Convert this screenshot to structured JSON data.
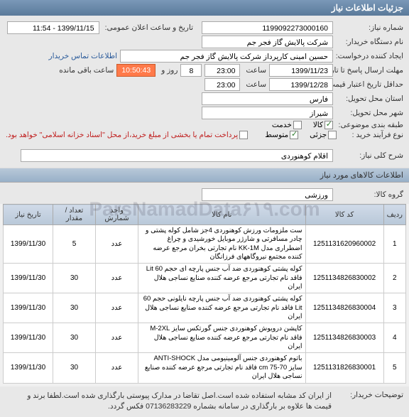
{
  "header": {
    "title": "جزئیات اطلاعات نیاز"
  },
  "form": {
    "req_no_label": "شماره نیاز:",
    "req_no": "1199092273000160",
    "announce_label": "تاریخ و ساعت اعلان عمومی:",
    "announce": "1399/11/15 - 11:54",
    "buyer_label": "نام دستگاه خریدار:",
    "buyer": "شرکت پالایش گاز فجر جم",
    "creator_label": "ایجاد کننده درخواست:",
    "creator": "حسین امینی کارپرداز شرکت پالایش گاز فجر جم",
    "contact_link": "اطلاعات تماس خریدار",
    "deadline_label": "مهلت ارسال پاسخ تا تاریخ:",
    "deadline_date": "1399/11/23",
    "deadline_time_lbl": "ساعت",
    "deadline_time": "23:00",
    "days_lbl": "روز و",
    "days": "8",
    "remain_time": "10:50:43",
    "remain_lbl": "ساعت باقی مانده",
    "valid_label": "حداقل تاریخ اعتبار قیمت: تا تاریخ:",
    "valid_date": "1399/12/28",
    "valid_time": "23:00",
    "province_label": "استان محل تحویل:",
    "province": "فارس",
    "city_label": "شهر محل تحویل:",
    "city": "شیراز",
    "budget_label": "طبقه بندی موضوعی:",
    "budget_opts": {
      "goods": "کالا",
      "service": "خدمت"
    },
    "purchase_label": "نوع فرآیند خرید :",
    "purchase_opts": {
      "small": "جزئی",
      "medium": "متوسط"
    },
    "pay_chk": "پرداخت تمام یا بخشی از مبلغ خرید،از محل \"اسناد خزانه اسلامی\" خواهد بود.",
    "desc_label": "شرح کلی نیاز:",
    "desc": "اقلام کوهنوردی"
  },
  "items_section": {
    "title": "اطلاعات کالاهای مورد نیاز",
    "group_label": "گروه کالا:",
    "group": "ورزشی"
  },
  "table": {
    "headers": {
      "idx": "ردیف",
      "code": "کد کالا",
      "name": "نام کالا",
      "unit": "واحد شمارش",
      "qty": "تعداد / مقدار",
      "date": "تاریخ نیاز"
    },
    "rows": [
      {
        "idx": "1",
        "code": "1251131620960002",
        "name": "ست ملزومات ورزش کوهنوردی 4جز شامل کوله پشتی و چادر مسافرتی و شارژر موبایل خورشیدی و چراغ اضطراری مدل KK-1M نام تجارتی بخران مرجع عرضه کننده مجتمع نیروگاههای فرزانگان",
        "unit": "عدد",
        "qty": "5",
        "date": "1399/11/30"
      },
      {
        "idx": "2",
        "code": "1251134826830002",
        "name": "کوله پشتی کوهنوردی ضد آب جنس پارچه ای حجم Lit 60 فاقد نام تجارتی مرجع عرضه کننده صنایع نساجی هلال ایران",
        "unit": "عدد",
        "qty": "30",
        "date": "1399/11/30"
      },
      {
        "idx": "3",
        "code": "1251134826830004",
        "name": "کوله پشتی کوهنوردی ضد آب جنس پارچه نایلونی حجم 60 Lit فاقد نام تجارتی مرجع عرضه کننده صنایع نساجی هلال ایران",
        "unit": "عدد",
        "qty": "30",
        "date": "1399/11/30"
      },
      {
        "idx": "4",
        "code": "1251134826830003",
        "name": "کاپشن درویوش کوهنوردی جنس گورتکس سایز M-2XL فاقد نام تجارتی مرجع عرضه کننده صنایع نساجی هلال ایران",
        "unit": "عدد",
        "qty": "30",
        "date": "1399/11/30"
      },
      {
        "idx": "5",
        "code": "1251131826830001",
        "name": "باتوم کوهنوردی جنس آلومینیومی مدل ANTI-SHOCK سایز cm 75-70 فاقد نام تجارتی مرجع عرضه کننده صنایع نساجی هلال ایران",
        "unit": "عدد",
        "qty": "30",
        "date": "1399/11/30"
      }
    ]
  },
  "footer": {
    "note_label": "توضیحات خریدار:",
    "note": "از ایران کد مشابه استفاده شده است.اصل تقاضا در مدارک پیوستی بارگذاری شده است.لطفا برند و قیمت ها علاوه بر بارگذاری در سامانه بشماره 07136283229 فکس گردد."
  },
  "watermark": "ParsNamadData۶۱۹.com"
}
